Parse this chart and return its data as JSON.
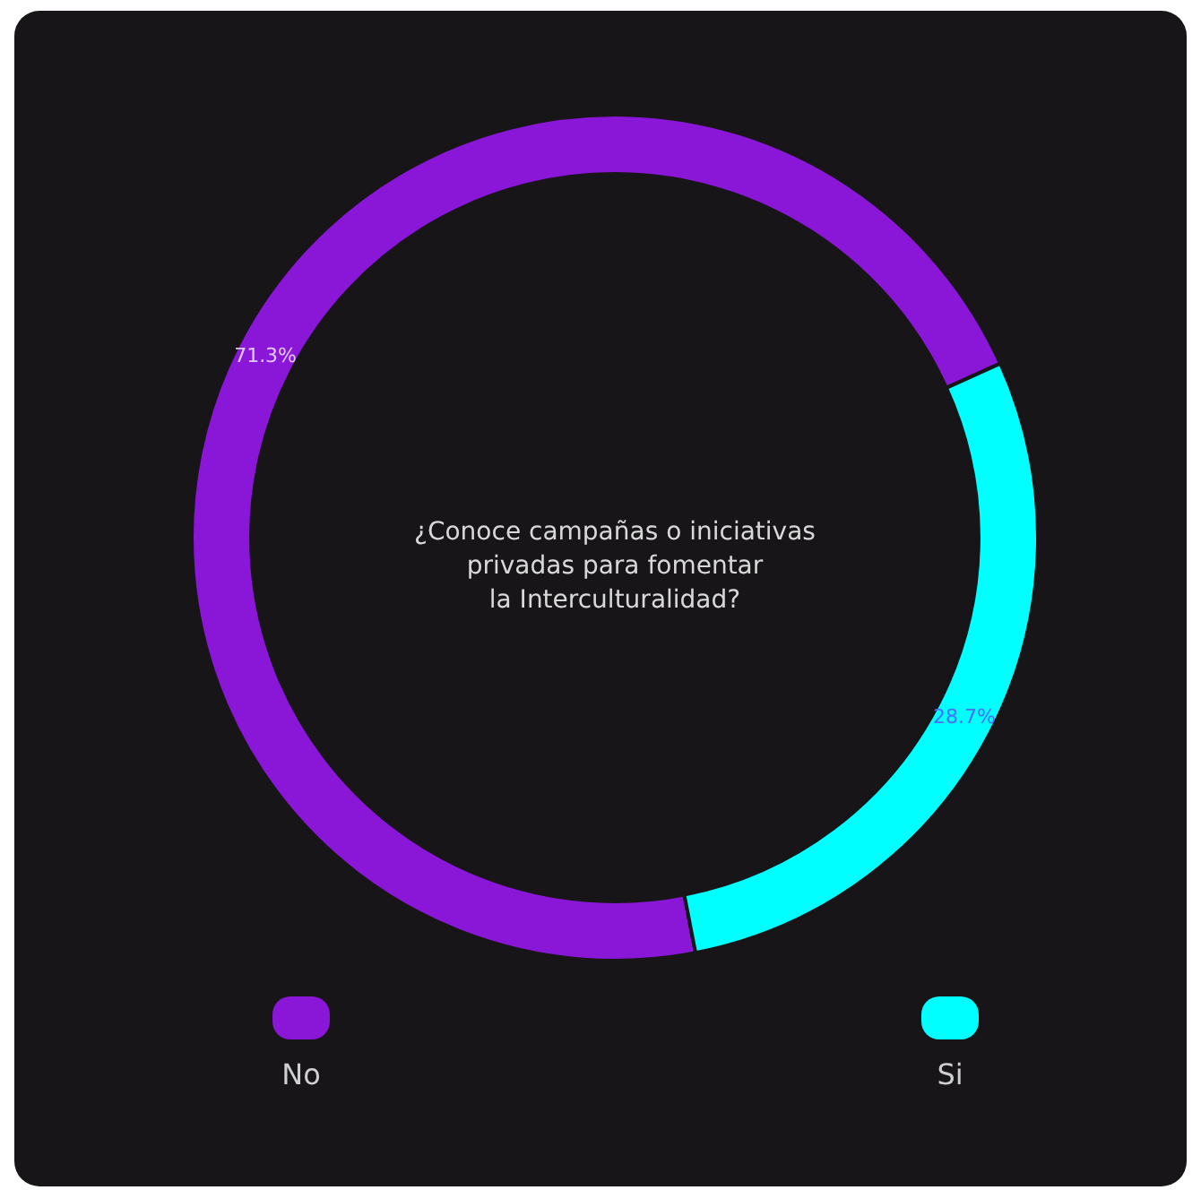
{
  "chart_data": {
    "type": "donut",
    "title": "¿Conoce campañas o iniciativas\nprivadas para fomentar\nla Interculturalidad?",
    "categories": [
      "No",
      "Si"
    ],
    "values": [
      71.3,
      28.7
    ],
    "colors": [
      "#8a16d8",
      "#00ffff"
    ],
    "value_labels": [
      "71.3%",
      "28.7%"
    ],
    "legend": "bottom"
  }
}
